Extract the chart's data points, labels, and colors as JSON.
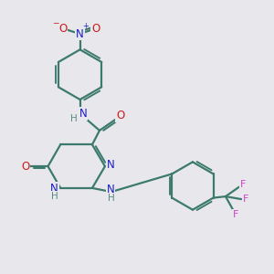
{
  "background_color": "#e8e8ec",
  "bond_color": "#3d7a6e",
  "nitrogen_color": "#1a1acc",
  "oxygen_color": "#cc1a1a",
  "fluorine_color": "#cc44cc",
  "hydrogen_color": "#5a8a84",
  "line_width": 1.6,
  "dbo": 0.08,
  "figsize": [
    3.0,
    3.0
  ],
  "dpi": 100,
  "xlim": [
    0,
    10
  ],
  "ylim": [
    0,
    10
  ]
}
